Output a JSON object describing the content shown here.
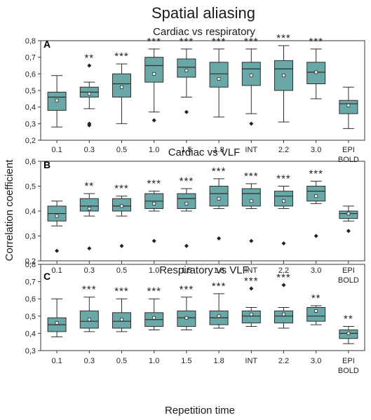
{
  "figure": {
    "title": "Spatial aliasing",
    "xlabel": "Repetition time",
    "ylabel": "Correlation coefficient",
    "colors": {
      "box_fill": "#6aa8a8",
      "box_stroke": "#2e2e2e",
      "text": "#1a1a1a"
    }
  },
  "chart_data": [
    {
      "type": "box",
      "panel": "A",
      "title": "Cardiac vs respiratory",
      "categories": [
        "0.1",
        "0.3",
        "0.5",
        "1.0",
        "1.5",
        "1.8",
        "INT",
        "2.2",
        "3.0",
        "EPI BOLD"
      ],
      "ylim": [
        0.2,
        0.8
      ],
      "yticks": [
        "0,2",
        "0,3",
        "0,4",
        "0,5",
        "0,6",
        "0,7",
        "0,8"
      ],
      "boxes": [
        {
          "wl": 0.28,
          "q1": 0.38,
          "med": 0.46,
          "q3": 0.49,
          "wh": 0.59,
          "mean": 0.44,
          "outliers": []
        },
        {
          "wl": 0.39,
          "q1": 0.46,
          "med": 0.49,
          "q3": 0.52,
          "wh": 0.55,
          "mean": 0.48,
          "outliers": [
            0.65,
            0.3,
            0.29
          ]
        },
        {
          "wl": 0.3,
          "q1": 0.46,
          "med": 0.54,
          "q3": 0.6,
          "wh": 0.66,
          "mean": 0.52,
          "outliers": []
        },
        {
          "wl": 0.37,
          "q1": 0.55,
          "med": 0.65,
          "q3": 0.7,
          "wh": 0.75,
          "mean": 0.6,
          "outliers": [
            0.32
          ]
        },
        {
          "wl": 0.46,
          "q1": 0.58,
          "med": 0.64,
          "q3": 0.69,
          "wh": 0.75,
          "mean": 0.62,
          "outliers": [
            0.37
          ]
        },
        {
          "wl": 0.34,
          "q1": 0.52,
          "med": 0.6,
          "q3": 0.67,
          "wh": 0.75,
          "mean": 0.57,
          "outliers": []
        },
        {
          "wl": 0.36,
          "q1": 0.53,
          "med": 0.63,
          "q3": 0.67,
          "wh": 0.75,
          "mean": 0.59,
          "outliers": [
            0.3
          ]
        },
        {
          "wl": 0.31,
          "q1": 0.5,
          "med": 0.63,
          "q3": 0.68,
          "wh": 0.77,
          "mean": 0.59,
          "outliers": []
        },
        {
          "wl": 0.45,
          "q1": 0.54,
          "med": 0.61,
          "q3": 0.67,
          "wh": 0.75,
          "mean": 0.61,
          "outliers": []
        },
        {
          "wl": 0.27,
          "q1": 0.36,
          "med": 0.42,
          "q3": 0.44,
          "wh": 0.52,
          "mean": 0.41,
          "outliers": []
        }
      ],
      "significance": [
        "",
        "**",
        "***",
        "***",
        "***",
        "***",
        "***",
        "***",
        "***",
        ""
      ]
    },
    {
      "type": "box",
      "panel": "B",
      "title": "Cardiac vs VLF",
      "categories": [
        "0.1",
        "0.3",
        "0.5",
        "1.0",
        "1.5",
        "1.8",
        "INT",
        "2.2",
        "3.0",
        "EPI BOLD"
      ],
      "ylim": [
        0.2,
        0.6
      ],
      "yticks": [
        "0,2",
        "0,3",
        "0,4",
        "0,5",
        "0,6"
      ],
      "boxes": [
        {
          "wl": 0.34,
          "q1": 0.36,
          "med": 0.39,
          "q3": 0.42,
          "wh": 0.44,
          "mean": 0.38,
          "outliers": [
            0.24
          ]
        },
        {
          "wl": 0.38,
          "q1": 0.4,
          "med": 0.42,
          "q3": 0.45,
          "wh": 0.47,
          "mean": 0.41,
          "outliers": [
            0.25
          ]
        },
        {
          "wl": 0.38,
          "q1": 0.4,
          "med": 0.42,
          "q3": 0.45,
          "wh": 0.46,
          "mean": 0.42,
          "outliers": [
            0.26
          ]
        },
        {
          "wl": 0.4,
          "q1": 0.41,
          "med": 0.44,
          "q3": 0.47,
          "wh": 0.48,
          "mean": 0.43,
          "outliers": [
            0.28
          ]
        },
        {
          "wl": 0.4,
          "q1": 0.41,
          "med": 0.45,
          "q3": 0.47,
          "wh": 0.49,
          "mean": 0.43,
          "outliers": [
            0.26
          ]
        },
        {
          "wl": 0.41,
          "q1": 0.42,
          "med": 0.47,
          "q3": 0.5,
          "wh": 0.53,
          "mean": 0.45,
          "outliers": [
            0.29
          ]
        },
        {
          "wl": 0.41,
          "q1": 0.42,
          "med": 0.47,
          "q3": 0.49,
          "wh": 0.51,
          "mean": 0.44,
          "outliers": [
            0.28
          ]
        },
        {
          "wl": 0.41,
          "q1": 0.42,
          "med": 0.46,
          "q3": 0.48,
          "wh": 0.5,
          "mean": 0.44,
          "outliers": [
            0.27
          ]
        },
        {
          "wl": 0.43,
          "q1": 0.44,
          "med": 0.48,
          "q3": 0.5,
          "wh": 0.52,
          "mean": 0.46,
          "outliers": [
            0.3
          ]
        },
        {
          "wl": 0.36,
          "q1": 0.37,
          "med": 0.39,
          "q3": 0.4,
          "wh": 0.42,
          "mean": 0.39,
          "outliers": [
            0.32
          ]
        }
      ],
      "significance": [
        "",
        "**",
        "***",
        "***",
        "***",
        "***",
        "***",
        "***",
        "***",
        ""
      ]
    },
    {
      "type": "box",
      "panel": "C",
      "title": "Respiratory vs VLF",
      "categories": [
        "0.1",
        "0.3",
        "0.5",
        "1.0",
        "1.5",
        "1.8",
        "INT",
        "2.2",
        "3.0",
        "EPI BOLD"
      ],
      "ylim": [
        0.3,
        0.8
      ],
      "yticks": [
        "0,3",
        "0,4",
        "0,5",
        "0,6",
        "0,7",
        "0,8"
      ],
      "boxes": [
        {
          "wl": 0.38,
          "q1": 0.41,
          "med": 0.45,
          "q3": 0.49,
          "wh": 0.6,
          "mean": 0.46,
          "outliers": []
        },
        {
          "wl": 0.41,
          "q1": 0.43,
          "med": 0.47,
          "q3": 0.53,
          "wh": 0.61,
          "mean": 0.48,
          "outliers": []
        },
        {
          "wl": 0.41,
          "q1": 0.43,
          "med": 0.47,
          "q3": 0.52,
          "wh": 0.6,
          "mean": 0.48,
          "outliers": []
        },
        {
          "wl": 0.42,
          "q1": 0.44,
          "med": 0.48,
          "q3": 0.52,
          "wh": 0.6,
          "mean": 0.49,
          "outliers": []
        },
        {
          "wl": 0.42,
          "q1": 0.44,
          "med": 0.49,
          "q3": 0.53,
          "wh": 0.61,
          "mean": 0.49,
          "outliers": []
        },
        {
          "wl": 0.43,
          "q1": 0.45,
          "med": 0.49,
          "q3": 0.53,
          "wh": 0.63,
          "mean": 0.5,
          "outliers": []
        },
        {
          "wl": 0.44,
          "q1": 0.46,
          "med": 0.5,
          "q3": 0.53,
          "wh": 0.55,
          "mean": 0.51,
          "outliers": [
            0.66
          ]
        },
        {
          "wl": 0.43,
          "q1": 0.46,
          "med": 0.5,
          "q3": 0.53,
          "wh": 0.55,
          "mean": 0.51,
          "outliers": [
            0.68
          ]
        },
        {
          "wl": 0.45,
          "q1": 0.47,
          "med": 0.5,
          "q3": 0.55,
          "wh": 0.56,
          "mean": 0.53,
          "outliers": []
        },
        {
          "wl": 0.34,
          "q1": 0.37,
          "med": 0.4,
          "q3": 0.42,
          "wh": 0.44,
          "mean": 0.4,
          "outliers": []
        }
      ],
      "significance": [
        "",
        "***",
        "***",
        "***",
        "***",
        "***",
        "***",
        "***",
        "**",
        "**"
      ]
    }
  ]
}
